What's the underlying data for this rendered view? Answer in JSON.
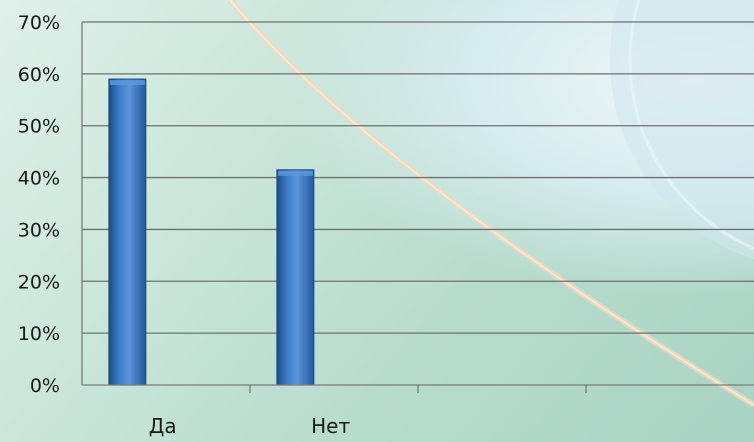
{
  "chart_data": {
    "type": "bar",
    "categories": [
      "Да",
      "Нет",
      "",
      ""
    ],
    "values": [
      59,
      41.5,
      null,
      null
    ],
    "title": "",
    "xlabel": "",
    "ylabel": "",
    "ylim": [
      0,
      70
    ],
    "yticks": [
      "0%",
      "10%",
      "20%",
      "30%",
      "40%",
      "50%",
      "60%",
      "70%"
    ],
    "grid": true,
    "legend": "none",
    "colors": {
      "bar": "#2f6fbf",
      "bar_highlight": "#5b95dd",
      "bar_shadow": "#1d4a87",
      "grid": "#6f6f6f",
      "axis": "#7a7a7a"
    }
  }
}
